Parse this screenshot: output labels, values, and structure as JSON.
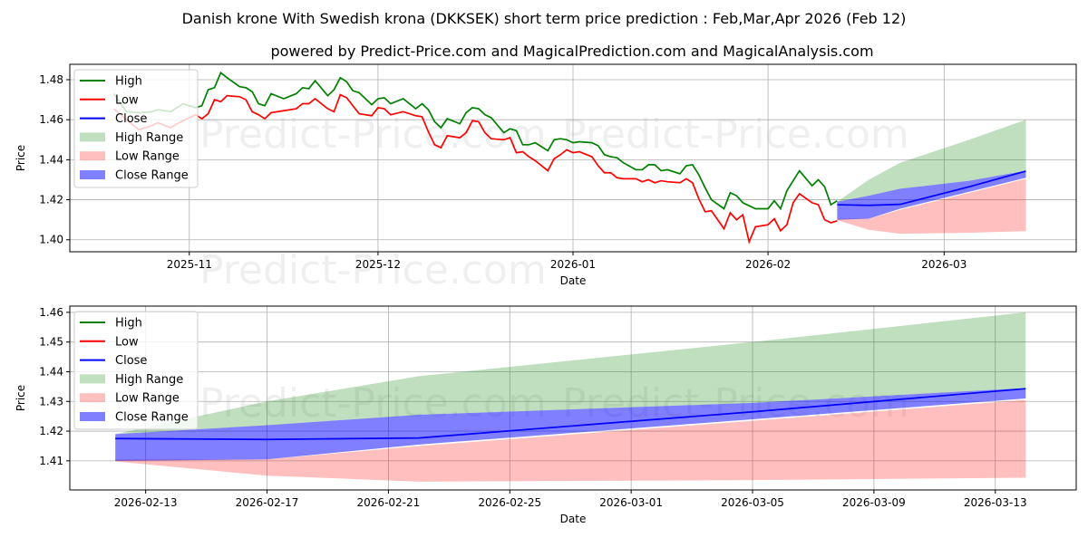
{
  "title": "Danish krone With Swedish krona (DKKSEK) short term price prediction : Feb,Mar,Apr 2026 (Feb 12)",
  "subtitle": "powered by Predict-Price.com and MagicalPrediction.com and MagicalAnalysis.com",
  "watermark": "Predict-Price.com",
  "colors": {
    "high": "#008000",
    "low": "#ff0000",
    "close": "#0000ff",
    "high_range": "#008000",
    "low_range": "#ff0000",
    "close_range": "#0000ff",
    "grid": "#b0b0b0"
  },
  "legend": [
    "High",
    "Low",
    "Close",
    "High Range",
    "Low Range",
    "Close Range"
  ],
  "chart_data": [
    {
      "type": "line",
      "xlabel": "Date",
      "ylabel": "Price",
      "xlim": [
        "2025-10-13",
        "2026-03-22"
      ],
      "ylim": [
        1.394,
        1.4877
      ],
      "grid": true,
      "legend_position": "top-left",
      "xticks": [
        "2025-11",
        "2025-12",
        "2026-01",
        "2026-02",
        "2026-03"
      ],
      "yticks": [
        "1.40",
        "1.42",
        "1.44",
        "1.46",
        "1.48"
      ],
      "history": {
        "dates": [
          "2025-10-20",
          "2025-10-22",
          "2025-10-24",
          "2025-10-26",
          "2025-10-27",
          "2025-10-29",
          "2025-10-31",
          "2025-11-02",
          "2025-11-03",
          "2025-11-04",
          "2025-11-05",
          "2025-11-06",
          "2025-11-07",
          "2025-11-09",
          "2025-11-10",
          "2025-11-11",
          "2025-11-12",
          "2025-11-13",
          "2025-11-14",
          "2025-11-16",
          "2025-11-18",
          "2025-11-19",
          "2025-11-20",
          "2025-11-21",
          "2025-11-23",
          "2025-11-24",
          "2025-11-25",
          "2025-11-26",
          "2025-11-27",
          "2025-11-28",
          "2025-11-30",
          "2025-12-01",
          "2025-12-02",
          "2025-12-03",
          "2025-12-05",
          "2025-12-07",
          "2025-12-08",
          "2025-12-09",
          "2025-12-10",
          "2025-12-11",
          "2025-12-12",
          "2025-12-14",
          "2025-12-15",
          "2025-12-16",
          "2025-12-17",
          "2025-12-18",
          "2025-12-19",
          "2025-12-21",
          "2025-12-22",
          "2025-12-23",
          "2025-12-24",
          "2025-12-25",
          "2025-12-26",
          "2025-12-28",
          "2025-12-29",
          "2025-12-30",
          "2025-12-31",
          "2026-01-01",
          "2026-01-02",
          "2026-01-04",
          "2026-01-05",
          "2026-01-06",
          "2026-01-07",
          "2026-01-08",
          "2026-01-09",
          "2026-01-11",
          "2026-01-12",
          "2026-01-13",
          "2026-01-14",
          "2026-01-15",
          "2026-01-16",
          "2026-01-18",
          "2026-01-19",
          "2026-01-20",
          "2026-01-21",
          "2026-01-22",
          "2026-01-23",
          "2026-01-25",
          "2026-01-26",
          "2026-01-27",
          "2026-01-28",
          "2026-01-29",
          "2026-01-30",
          "2026-02-01",
          "2026-02-02",
          "2026-02-03",
          "2026-02-04",
          "2026-02-05",
          "2026-02-06",
          "2026-02-08",
          "2026-02-09",
          "2026-02-10",
          "2026-02-11",
          "2026-02-12"
        ],
        "high": [
          1.473,
          1.464,
          1.4635,
          1.464,
          1.465,
          1.464,
          1.468,
          1.466,
          1.467,
          1.475,
          1.476,
          1.4835,
          1.481,
          1.4765,
          1.476,
          1.474,
          1.468,
          1.467,
          1.473,
          1.4705,
          1.473,
          1.476,
          1.4755,
          1.4795,
          1.472,
          1.475,
          1.481,
          1.479,
          1.4745,
          1.4735,
          1.4675,
          1.4705,
          1.471,
          1.468,
          1.4705,
          1.4655,
          1.468,
          1.465,
          1.459,
          1.456,
          1.4605,
          1.458,
          1.4635,
          1.466,
          1.4655,
          1.4625,
          1.461,
          1.4535,
          1.4555,
          1.4545,
          1.4475,
          1.4475,
          1.4485,
          1.4445,
          1.45,
          1.4505,
          1.45,
          1.4485,
          1.449,
          1.4485,
          1.447,
          1.4425,
          1.4415,
          1.441,
          1.4385,
          1.435,
          1.435,
          1.4375,
          1.4375,
          1.4345,
          1.435,
          1.433,
          1.437,
          1.4375,
          1.4325,
          1.426,
          1.42,
          1.4155,
          1.4235,
          1.422,
          1.4185,
          1.417,
          1.4155,
          1.4155,
          1.4195,
          1.4155,
          1.4245,
          1.4295,
          1.4345,
          1.427,
          1.43,
          1.4265,
          1.4175,
          1.4195
        ],
        "low": [
          1.4655,
          1.46,
          1.455,
          1.457,
          1.4585,
          1.456,
          1.4595,
          1.4625,
          1.4605,
          1.463,
          1.47,
          1.469,
          1.472,
          1.4715,
          1.47,
          1.464,
          1.4625,
          1.4605,
          1.4635,
          1.4645,
          1.4655,
          1.468,
          1.468,
          1.4705,
          1.4655,
          1.464,
          1.4725,
          1.471,
          1.467,
          1.463,
          1.462,
          1.466,
          1.4655,
          1.4625,
          1.464,
          1.462,
          1.4615,
          1.454,
          1.4475,
          1.446,
          1.452,
          1.451,
          1.4535,
          1.4595,
          1.459,
          1.4535,
          1.4505,
          1.45,
          1.451,
          1.4435,
          1.444,
          1.4415,
          1.4395,
          1.4345,
          1.4405,
          1.4425,
          1.445,
          1.4435,
          1.444,
          1.4415,
          1.437,
          1.4335,
          1.4335,
          1.431,
          1.4305,
          1.4305,
          1.429,
          1.43,
          1.4285,
          1.4295,
          1.429,
          1.4285,
          1.4305,
          1.4285,
          1.4205,
          1.414,
          1.4145,
          1.4055,
          1.4135,
          1.41,
          1.4125,
          1.399,
          1.4065,
          1.4075,
          1.4105,
          1.4045,
          1.4075,
          1.4185,
          1.423,
          1.4185,
          1.4175,
          1.41,
          1.4085,
          1.4095
        ]
      },
      "forecast": {
        "dates": [
          "2026-02-12",
          "2026-02-17",
          "2026-02-22",
          "2026-03-05",
          "2026-03-14"
        ],
        "close": [
          1.4175,
          1.4172,
          1.4177,
          1.4265,
          1.4343
        ],
        "high_range_upper": [
          1.419,
          1.43,
          1.4385,
          1.45,
          1.46
        ],
        "high_range_lower": [
          1.419,
          1.422,
          1.4255,
          1.4295,
          1.4345
        ],
        "close_range_upper": [
          1.419,
          1.422,
          1.4255,
          1.4295,
          1.4345
        ],
        "close_range_lower": [
          1.41,
          1.4105,
          1.4155,
          1.424,
          1.431
        ],
        "low_range_upper": [
          1.4105,
          1.4105,
          1.415,
          1.4235,
          1.4305
        ],
        "low_range_lower": [
          1.4098,
          1.405,
          1.403,
          1.4035,
          1.4043
        ]
      }
    },
    {
      "type": "area",
      "xlabel": "Date",
      "ylabel": "Price",
      "xlim": [
        "2026-02-10T12:00",
        "2026-03-15T16:00"
      ],
      "ylim": [
        1.4002,
        1.4621
      ],
      "grid": true,
      "legend_position": "top-left",
      "xticks": [
        "2026-02-13",
        "2026-02-17",
        "2026-02-21",
        "2026-02-25",
        "2026-03-01",
        "2026-03-05",
        "2026-03-09",
        "2026-03-13"
      ],
      "yticks": [
        "1.41",
        "1.42",
        "1.43",
        "1.44",
        "1.45",
        "1.46"
      ],
      "uses_forecast_of_chart": 0
    }
  ]
}
